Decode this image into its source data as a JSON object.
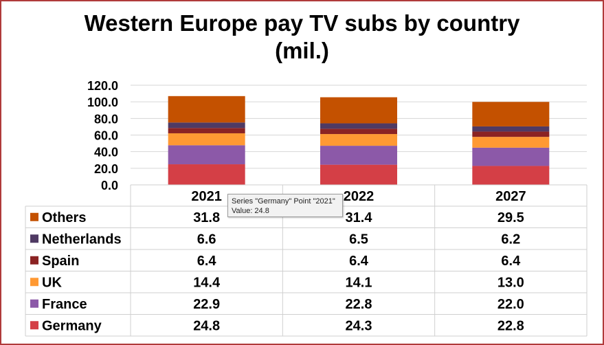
{
  "chart_data": {
    "type": "bar",
    "stacked": true,
    "title_line1": "Western Europe pay TV subs by country",
    "title_line2": "(mil.)",
    "categories": [
      "2021",
      "2022",
      "2027"
    ],
    "ylim": [
      0,
      120
    ],
    "yticks": [
      "0.0",
      "20.0",
      "40.0",
      "60.0",
      "80.0",
      "100.0",
      "120.0"
    ],
    "grid": true,
    "legend": "data-table",
    "series": [
      {
        "name": "Germany",
        "color": "#d43f46",
        "values": [
          24.8,
          24.3,
          22.8
        ],
        "labels": [
          "24.8",
          "24.3",
          "22.8"
        ]
      },
      {
        "name": "France",
        "color": "#8c59a8",
        "values": [
          22.9,
          22.8,
          22.0
        ],
        "labels": [
          "22.9",
          "22.8",
          "22.0"
        ]
      },
      {
        "name": "UK",
        "color": "#ff9933",
        "values": [
          14.4,
          14.1,
          13.0
        ],
        "labels": [
          "14.4",
          "14.1",
          "13.0"
        ]
      },
      {
        "name": "Spain",
        "color": "#8b2323",
        "values": [
          6.4,
          6.4,
          6.4
        ],
        "labels": [
          "6.4",
          "6.4",
          "6.4"
        ]
      },
      {
        "name": "Netherlands",
        "color": "#4f3a63",
        "values": [
          6.6,
          6.5,
          6.2
        ],
        "labels": [
          "6.6",
          "6.5",
          "6.2"
        ]
      },
      {
        "name": "Others",
        "color": "#c45100",
        "values": [
          31.8,
          31.4,
          29.5
        ],
        "labels": [
          "31.8",
          "31.4",
          "29.5"
        ]
      }
    ]
  },
  "tooltip": {
    "line1": "Series \"Germany\" Point \"2021\"",
    "line2": "Value: 24.8"
  }
}
